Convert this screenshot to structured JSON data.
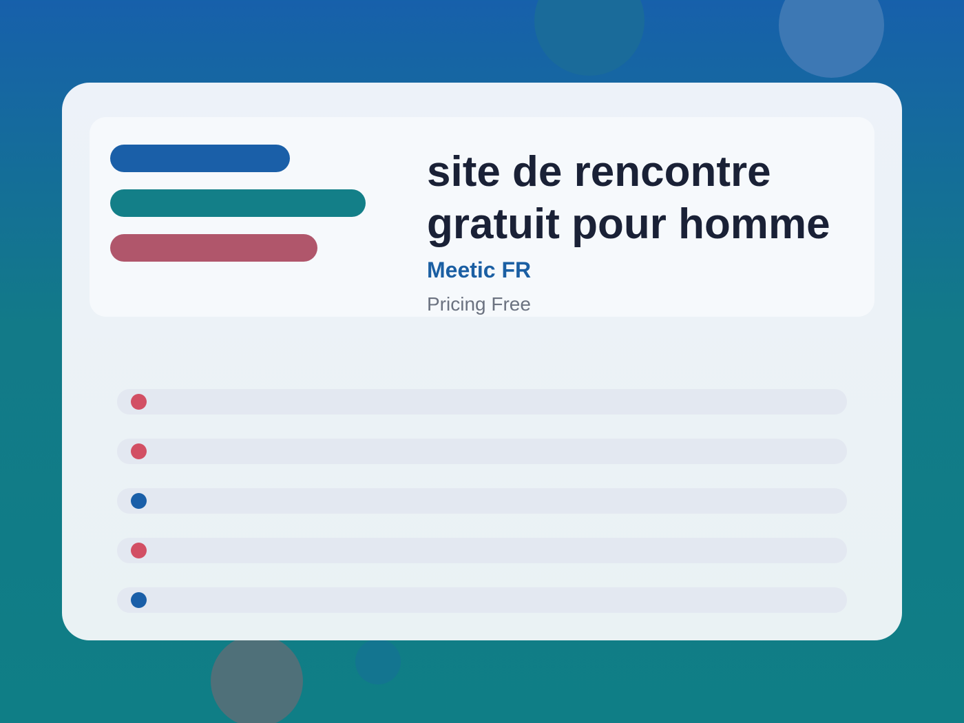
{
  "header": {
    "title_lines": [
      "site de rencontre",
      "gratuit pour homme"
    ],
    "brand": "Meetic FR",
    "pricing": "Pricing Free"
  }
}
